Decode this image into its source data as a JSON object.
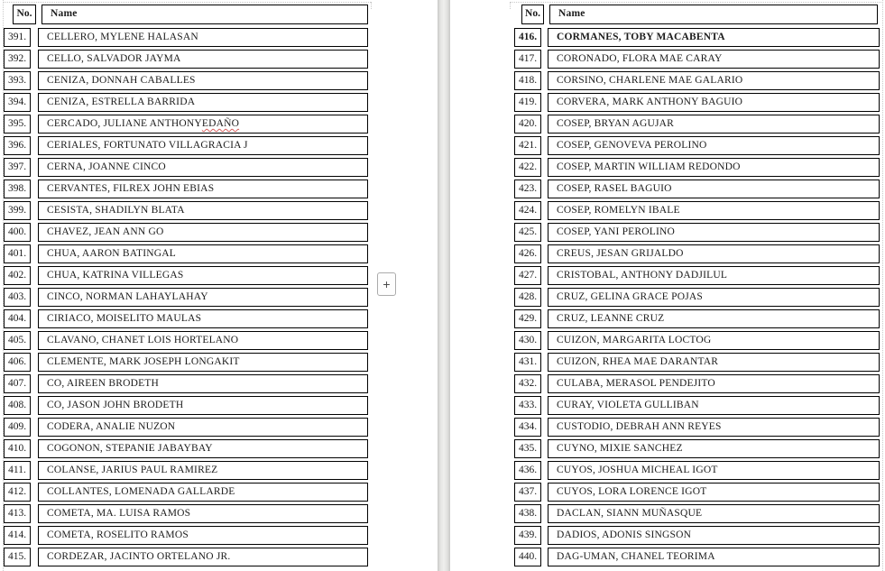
{
  "app": {
    "background_color": "#ffffff",
    "page_gap_color": "#dedede",
    "border_color": "#000000",
    "spellcheck_color": "#d8605f"
  },
  "controls": {
    "plus_label": "+"
  },
  "left_table": {
    "columns": {
      "no": "No.",
      "name": "Name"
    },
    "rows": [
      {
        "no": "391.",
        "name": "CELLERO, MYLENE HALASAN"
      },
      {
        "no": "392.",
        "name": "CELLO, SALVADOR JAYMA"
      },
      {
        "no": "393.",
        "name": "CENIZA, DONNAH CABALLES"
      },
      {
        "no": "394.",
        "name": "CENIZA, ESTRELLA BARRIDA"
      },
      {
        "no": "395.",
        "name": "CERCADO, JULIANE ANTHONY EDAÑO",
        "marked": "EDAÑO"
      },
      {
        "no": "396.",
        "name": "CERIALES, FORTUNATO VILLAGRACIA J"
      },
      {
        "no": "397.",
        "name": "CERNA, JOANNE CINCO"
      },
      {
        "no": "398.",
        "name": "CERVANTES, FILREX JOHN EBIAS"
      },
      {
        "no": "399.",
        "name": "CESISTA, SHADILYN BLATA"
      },
      {
        "no": "400.",
        "name": "CHAVEZ, JEAN ANN GO"
      },
      {
        "no": "401.",
        "name": "CHUA, AARON BATINGAL"
      },
      {
        "no": "402.",
        "name": "CHUA, KATRINA VILLEGAS"
      },
      {
        "no": "403.",
        "name": "CINCO, NORMAN LAHAYLAHAY"
      },
      {
        "no": "404.",
        "name": "CIRIACO, MOISELITO MAULAS"
      },
      {
        "no": "405.",
        "name": "CLAVANO, CHANET LOIS HORTELANO"
      },
      {
        "no": "406.",
        "name": "CLEMENTE, MARK JOSEPH LONGAKIT"
      },
      {
        "no": "407.",
        "name": "CO, AIREEN BRODETH"
      },
      {
        "no": "408.",
        "name": "CO, JASON JOHN BRODETH"
      },
      {
        "no": "409.",
        "name": "CODERA, ANALIE NUZON"
      },
      {
        "no": "410.",
        "name": "COGONON, STEPANIE JABAYBAY"
      },
      {
        "no": "411.",
        "name": "COLANSE, JARIUS PAUL RAMIREZ"
      },
      {
        "no": "412.",
        "name": "COLLANTES, LOMENADA GALLARDE"
      },
      {
        "no": "413.",
        "name": "COMETA, MA. LUISA RAMOS"
      },
      {
        "no": "414.",
        "name": "COMETA, ROSELITO RAMOS"
      },
      {
        "no": "415.",
        "name": "CORDEZAR, JACINTO ORTELANO JR."
      }
    ]
  },
  "right_table": {
    "columns": {
      "no": "No.",
      "name": "Name"
    },
    "rows": [
      {
        "no": "416.",
        "name": "CORMANES, TOBY MACABENTA",
        "bold": true
      },
      {
        "no": "417.",
        "name": "CORONADO, FLORA MAE CARAY"
      },
      {
        "no": "418.",
        "name": "CORSINO, CHARLENE MAE GALARIO"
      },
      {
        "no": "419.",
        "name": "CORVERA, MARK ANTHONY BAGUIO"
      },
      {
        "no": "420.",
        "name": "COSEP, BRYAN AGUJAR"
      },
      {
        "no": "421.",
        "name": "COSEP, GENOVEVA PEROLINO"
      },
      {
        "no": "422.",
        "name": "COSEP, MARTIN WILLIAM REDONDO"
      },
      {
        "no": "423.",
        "name": "COSEP, RASEL BAGUIO"
      },
      {
        "no": "424.",
        "name": "COSEP, ROMELYN IBALE"
      },
      {
        "no": "425.",
        "name": "COSEP, YANI PEROLINO"
      },
      {
        "no": "426.",
        "name": "CREUS, JESAN GRIJALDO"
      },
      {
        "no": "427.",
        "name": "CRISTOBAL, ANTHONY DADJILUL"
      },
      {
        "no": "428.",
        "name": "CRUZ, GELINA GRACE POJAS"
      },
      {
        "no": "429.",
        "name": "CRUZ, LEANNE CRUZ"
      },
      {
        "no": "430.",
        "name": "CUIZON, MARGARITA LOCTOG"
      },
      {
        "no": "431.",
        "name": "CUIZON, RHEA MAE DARANTAR"
      },
      {
        "no": "432.",
        "name": "CULABA, MERASOL PENDEJITO"
      },
      {
        "no": "433.",
        "name": "CURAY, VIOLETA GULLIBAN"
      },
      {
        "no": "434.",
        "name": "CUSTODIO, DEBRAH ANN REYES"
      },
      {
        "no": "435.",
        "name": "CUYNO, MIXIE SANCHEZ"
      },
      {
        "no": "436.",
        "name": "CUYOS, JOSHUA MICHEAL IGOT"
      },
      {
        "no": "437.",
        "name": "CUYOS, LORA LORENCE IGOT"
      },
      {
        "no": "438.",
        "name": "DACLAN, SIANN MUÑASQUE"
      },
      {
        "no": "439.",
        "name": "DADIOS, ADONIS SINGSON"
      },
      {
        "no": "440.",
        "name": "DAG-UMAN, CHANEL TEORIMA"
      }
    ]
  }
}
